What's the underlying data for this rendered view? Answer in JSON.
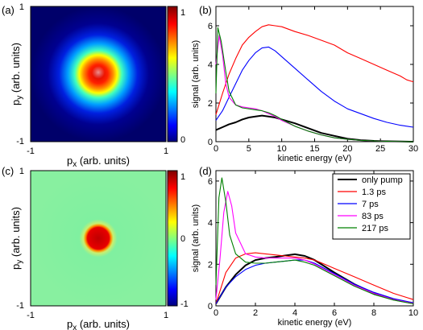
{
  "panels": {
    "a": {
      "label": "(a)",
      "xlabel_main": "p",
      "xlabel_sub": "x",
      "xlabel_rest": " (arb. units)",
      "ylabel_main": "p",
      "ylabel_sub": "y",
      "ylabel_rest": " (arb. units)",
      "xticks": [
        "-1",
        "1"
      ],
      "yticks": [
        "1",
        "-1"
      ],
      "colorbar_ticks": [
        "1",
        "0"
      ]
    },
    "c": {
      "label": "(c)",
      "xlabel_main": "p",
      "xlabel_sub": "x",
      "xlabel_rest": " (arb. units)",
      "ylabel_main": "p",
      "ylabel_sub": "y",
      "ylabel_rest": " (arb. units)",
      "xticks": [
        "-1",
        "1"
      ],
      "yticks": [
        "1",
        "-1"
      ],
      "colorbar_ticks": [
        "1",
        "0",
        "-1"
      ]
    },
    "b": {
      "label": "(b)"
    },
    "d": {
      "label": "(d)"
    }
  },
  "chart_data": [
    {
      "type": "heatmap",
      "panel": "a",
      "xlabel": "px (arb. units)",
      "ylabel": "py (arb. units)",
      "xlim": [
        -1,
        1
      ],
      "ylim": [
        -1,
        1
      ],
      "colorbar_range": [
        0,
        1
      ],
      "colormap": [
        "#00007f",
        "#0000ff",
        "#00ffff",
        "#ffff00",
        "#ff0000",
        "#7f0000"
      ]
    },
    {
      "type": "line",
      "panel": "b",
      "xlabel": "kinetic energy (eV)",
      "ylabel": "signal (arb. units)",
      "xlim": [
        0,
        30
      ],
      "ylim": [
        0,
        7
      ],
      "xticks": [
        0,
        5,
        10,
        15,
        20,
        25,
        30
      ],
      "yticks": [
        0,
        2,
        4,
        6
      ],
      "series": [
        {
          "color": "#000000",
          "x": [
            0,
            1,
            2,
            3,
            4,
            5,
            6,
            7,
            8,
            9,
            10,
            12,
            14,
            16,
            18,
            20,
            22,
            24,
            26,
            28,
            30
          ],
          "y": [
            0.6,
            0.75,
            0.9,
            1.0,
            1.15,
            1.25,
            1.3,
            1.35,
            1.3,
            1.25,
            1.15,
            0.95,
            0.7,
            0.45,
            0.3,
            0.15,
            0.08,
            0.04,
            0.02,
            0.01,
            0.0
          ]
        },
        {
          "color": "#ff0000",
          "x": [
            0,
            1,
            2,
            3,
            4,
            5,
            6,
            7,
            8,
            9,
            10,
            12,
            14,
            16,
            18,
            20,
            22,
            24,
            26,
            28,
            29,
            30
          ],
          "y": [
            1.4,
            2.5,
            3.5,
            4.3,
            5.0,
            5.4,
            5.7,
            5.95,
            6.05,
            6.0,
            5.95,
            5.7,
            5.5,
            5.25,
            5.0,
            4.6,
            4.3,
            4.0,
            3.7,
            3.4,
            3.2,
            3.1
          ]
        },
        {
          "color": "#0000ff",
          "x": [
            0,
            1,
            2,
            3,
            4,
            5,
            6,
            7,
            8,
            9,
            10,
            12,
            14,
            16,
            18,
            20,
            22,
            24,
            26,
            28,
            30
          ],
          "y": [
            1.1,
            1.6,
            2.3,
            3.0,
            3.7,
            4.2,
            4.6,
            4.85,
            4.9,
            4.7,
            4.4,
            3.8,
            3.2,
            2.6,
            2.1,
            1.7,
            1.45,
            1.2,
            1.0,
            0.85,
            0.75
          ]
        },
        {
          "color": "#ff00ff",
          "x": [
            0,
            0.5,
            1,
            1.5,
            2,
            3,
            4,
            5,
            6,
            7,
            8,
            9,
            10,
            12,
            14,
            16,
            18,
            20,
            22,
            24,
            26,
            28,
            30
          ],
          "y": [
            4.0,
            5.5,
            4.5,
            3.0,
            2.3,
            1.9,
            1.8,
            1.75,
            1.7,
            1.6,
            1.45,
            1.3,
            1.1,
            0.8,
            0.55,
            0.35,
            0.2,
            0.12,
            0.07,
            0.04,
            0.02,
            0.01,
            0.0
          ]
        },
        {
          "color": "#008000",
          "x": [
            0,
            0.3,
            0.8,
            1.5,
            2,
            3,
            4,
            5,
            6,
            7,
            8,
            9,
            10,
            12,
            14,
            16,
            18,
            20,
            22,
            24,
            26,
            28,
            30
          ],
          "y": [
            2.5,
            5.9,
            5.2,
            3.6,
            2.6,
            1.9,
            1.75,
            1.7,
            1.65,
            1.6,
            1.5,
            1.35,
            1.15,
            0.8,
            0.55,
            0.35,
            0.2,
            0.12,
            0.07,
            0.04,
            0.02,
            0.01,
            0.0
          ]
        }
      ]
    },
    {
      "type": "heatmap",
      "panel": "c",
      "xlabel": "px (arb. units)",
      "ylabel": "py (arb. units)",
      "xlim": [
        -1,
        1
      ],
      "ylim": [
        -1,
        1
      ],
      "colorbar_range": [
        -1,
        1
      ],
      "colormap": [
        "#00007f",
        "#0000ff",
        "#00ffff",
        "#ffff00",
        "#ff0000",
        "#7f0000"
      ]
    },
    {
      "type": "line",
      "panel": "d",
      "xlabel": "kinetic energy (eV)",
      "ylabel": "signal (arb. units)",
      "xlim": [
        0,
        10
      ],
      "ylim": [
        0,
        6.5
      ],
      "xticks": [
        0,
        2,
        4,
        6,
        8,
        10
      ],
      "yticks": [
        0,
        2,
        4,
        6
      ],
      "legend_position": "top-right",
      "series": [
        {
          "name": "only pump",
          "color": "#000000",
          "x": [
            0,
            0.5,
            1,
            1.5,
            2,
            2.5,
            3,
            3.5,
            4,
            4.5,
            5,
            5.5,
            6,
            7,
            8,
            9,
            10
          ],
          "y": [
            0.1,
            0.9,
            1.5,
            1.95,
            2.2,
            2.3,
            2.35,
            2.42,
            2.48,
            2.4,
            2.2,
            1.9,
            1.6,
            1.05,
            0.6,
            0.3,
            0.12
          ]
        },
        {
          "name": "1.3 ps",
          "color": "#ff0000",
          "x": [
            0,
            0.5,
            1,
            1.5,
            2,
            2.5,
            3,
            3.5,
            4,
            4.5,
            5,
            5.5,
            6,
            7,
            8,
            9,
            10
          ],
          "y": [
            0.1,
            1.6,
            2.3,
            2.5,
            2.55,
            2.5,
            2.45,
            2.4,
            2.35,
            2.3,
            2.2,
            2.0,
            1.8,
            1.4,
            1.0,
            0.6,
            0.3
          ]
        },
        {
          "name": "7 ps",
          "color": "#0000ff",
          "x": [
            0,
            0.5,
            1,
            1.5,
            2,
            2.5,
            3,
            3.5,
            4,
            4.5,
            5,
            5.5,
            6,
            7,
            8,
            9,
            10
          ],
          "y": [
            0.1,
            0.9,
            1.4,
            1.75,
            1.95,
            2.05,
            2.1,
            2.15,
            2.2,
            2.2,
            2.05,
            1.8,
            1.55,
            1.05,
            0.65,
            0.35,
            0.15
          ]
        },
        {
          "name": "83 ps",
          "color": "#ff00ff",
          "x": [
            0,
            0.2,
            0.4,
            0.6,
            0.8,
            1,
            1.5,
            2,
            2.5,
            3,
            3.5,
            4,
            4.5,
            5,
            5.5,
            6,
            7,
            8,
            9,
            10
          ],
          "y": [
            0.3,
            2.2,
            4.5,
            5.5,
            4.8,
            3.5,
            2.5,
            2.35,
            2.3,
            2.3,
            2.3,
            2.3,
            2.2,
            2.0,
            1.75,
            1.5,
            1.0,
            0.6,
            0.3,
            0.12
          ]
        },
        {
          "name": "217 ps",
          "color": "#008000",
          "x": [
            0,
            0.15,
            0.3,
            0.5,
            0.7,
            1,
            1.5,
            2,
            2.5,
            3,
            3.5,
            4,
            4.5,
            5,
            5.5,
            6,
            7,
            8,
            9,
            10
          ],
          "y": [
            1.0,
            5.2,
            6.15,
            5.0,
            3.4,
            2.5,
            2.1,
            2.05,
            2.05,
            2.1,
            2.15,
            2.2,
            2.1,
            1.95,
            1.7,
            1.45,
            0.95,
            0.55,
            0.28,
            0.1
          ]
        }
      ]
    }
  ]
}
